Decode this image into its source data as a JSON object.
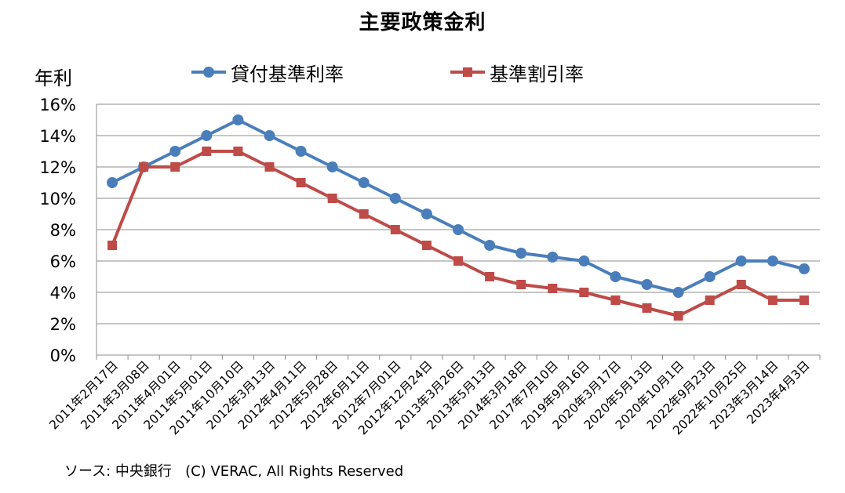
{
  "chart_data": {
    "type": "line",
    "title": "主要政策金利",
    "ylabel": "年利",
    "xlabel": "",
    "ylim": [
      0,
      16
    ],
    "yticks": [
      0,
      2,
      4,
      6,
      8,
      10,
      12,
      14,
      16
    ],
    "ytick_labels": [
      "0%",
      "2%",
      "4%",
      "6%",
      "8%",
      "10%",
      "12%",
      "14%",
      "16%"
    ],
    "grid": true,
    "legend_position": "top",
    "categories": [
      "2011年2月17日",
      "2011年3月08日",
      "2011年4月01日",
      "2011年5月01日",
      "2011年10月10日",
      "2012年3月13日",
      "2012年4月11日",
      "2012年5月28日",
      "2012年6月11日",
      "2012年7月01日",
      "2012年12月24日",
      "2013年3月26日",
      "2013年5月13日",
      "2014年3月18日",
      "2017年7月10日",
      "2019年9月16日",
      "2020年3月17日",
      "2020年5月13日",
      "2020年10月1日",
      "2022年9月23日",
      "2022年10月25日",
      "2023年3月14日",
      "2023年4月3日"
    ],
    "series": [
      {
        "name": "貸付基準利率",
        "color": "#4A7EBB",
        "marker": "circle",
        "values": [
          11,
          12,
          13,
          14,
          15,
          14,
          13,
          12,
          11,
          10,
          9,
          8,
          7,
          6.5,
          6.25,
          6,
          5,
          4.5,
          4,
          5,
          6,
          6,
          5.5
        ]
      },
      {
        "name": "基準割引率",
        "color": "#BE4B48",
        "marker": "square",
        "values": [
          7,
          12,
          12,
          13,
          13,
          12,
          11,
          10,
          9,
          8,
          7,
          6,
          5,
          4.5,
          4.25,
          4,
          3.5,
          3,
          2.5,
          3.5,
          4.5,
          3.5,
          3.5
        ]
      }
    ]
  },
  "source": {
    "label": "ソース: 中央銀行",
    "copyright": "(C) VERAC, All Rights Reserved"
  }
}
